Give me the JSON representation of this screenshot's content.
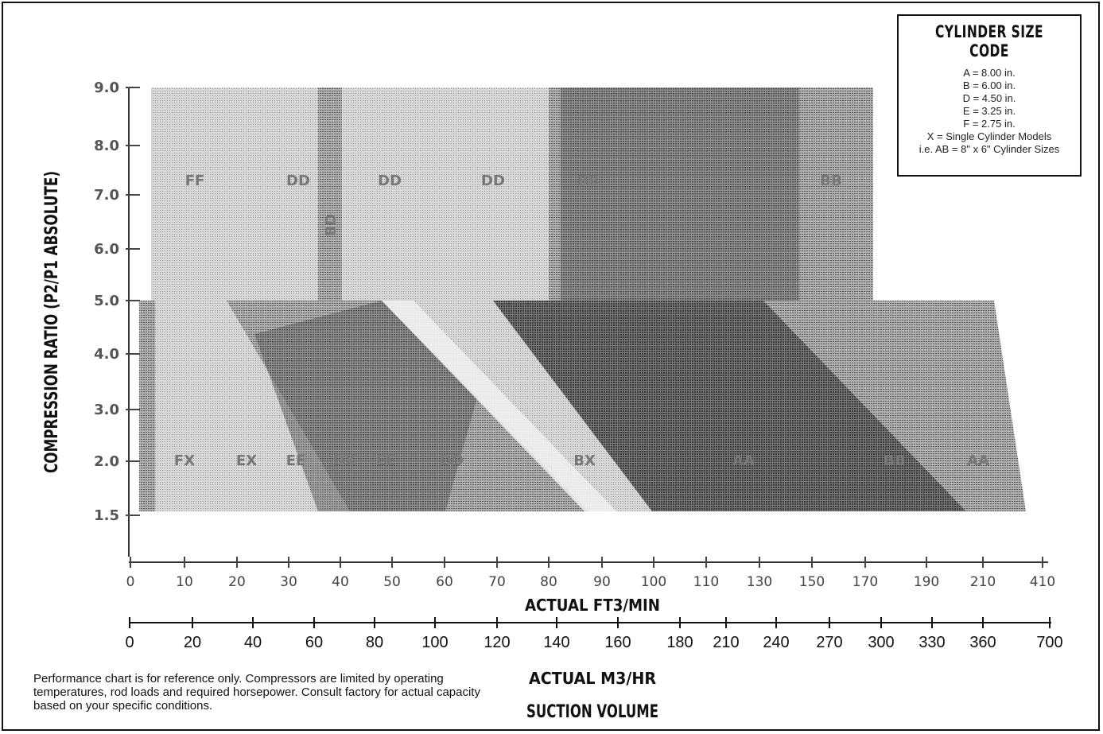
{
  "chart_data": {
    "type": "area",
    "ylabel": "COMPRESSION RATIO (P2/P1 ABSOLUTE)",
    "xlabel": "ACTUAL FT3/MIN",
    "x2label": "ACTUAL M3/HR",
    "x_caption": "SUCTION VOLUME",
    "y_ticks": [
      "9.0",
      "8.0",
      "7.0",
      "6.0",
      "5.0",
      "4.0",
      "3.0",
      "2.0",
      "1.5"
    ],
    "x_ticks": [
      "0",
      "10",
      "20",
      "30",
      "40",
      "50",
      "60",
      "70",
      "80",
      "90",
      "100",
      "110",
      "130",
      "150",
      "170",
      "190",
      "210",
      "410"
    ],
    "x2_ticks": [
      "0",
      "20",
      "40",
      "60",
      "80",
      "100",
      "120",
      "140",
      "160",
      "180",
      "210",
      "240",
      "270",
      "300",
      "330",
      "360",
      "700"
    ],
    "upper_zone_labels": [
      "FF",
      "DD",
      "DD",
      "DD",
      "BB",
      "BB"
    ],
    "mid_zone_label": "BD",
    "lower_zone_labels": [
      "FX",
      "EX",
      "EE",
      "DX",
      "EE",
      "DD",
      "BX",
      "AA",
      "BB",
      "AA"
    ],
    "colors": {
      "light": "#c4c4c4",
      "medium": "#9a9a9a",
      "dark": "#6e6e6e",
      "white_band": "#ededed",
      "ink": "#111111"
    }
  },
  "legend": {
    "title": "CYLINDER SIZE CODE",
    "lines": [
      "A = 8.00 in.",
      "B = 6.00 in.",
      "D = 4.50 in.",
      "E = 3.25 in.",
      "F = 2.75 in.",
      "X = Single Cylinder Models",
      "i.e. AB = 8\" x 6\" Cylinder Sizes"
    ]
  },
  "footnote": "Performance chart is for reference only. Compressors are limited by operating temperatures, rod loads and required horsepower. Consult factory for actual capacity based on your specific conditions."
}
